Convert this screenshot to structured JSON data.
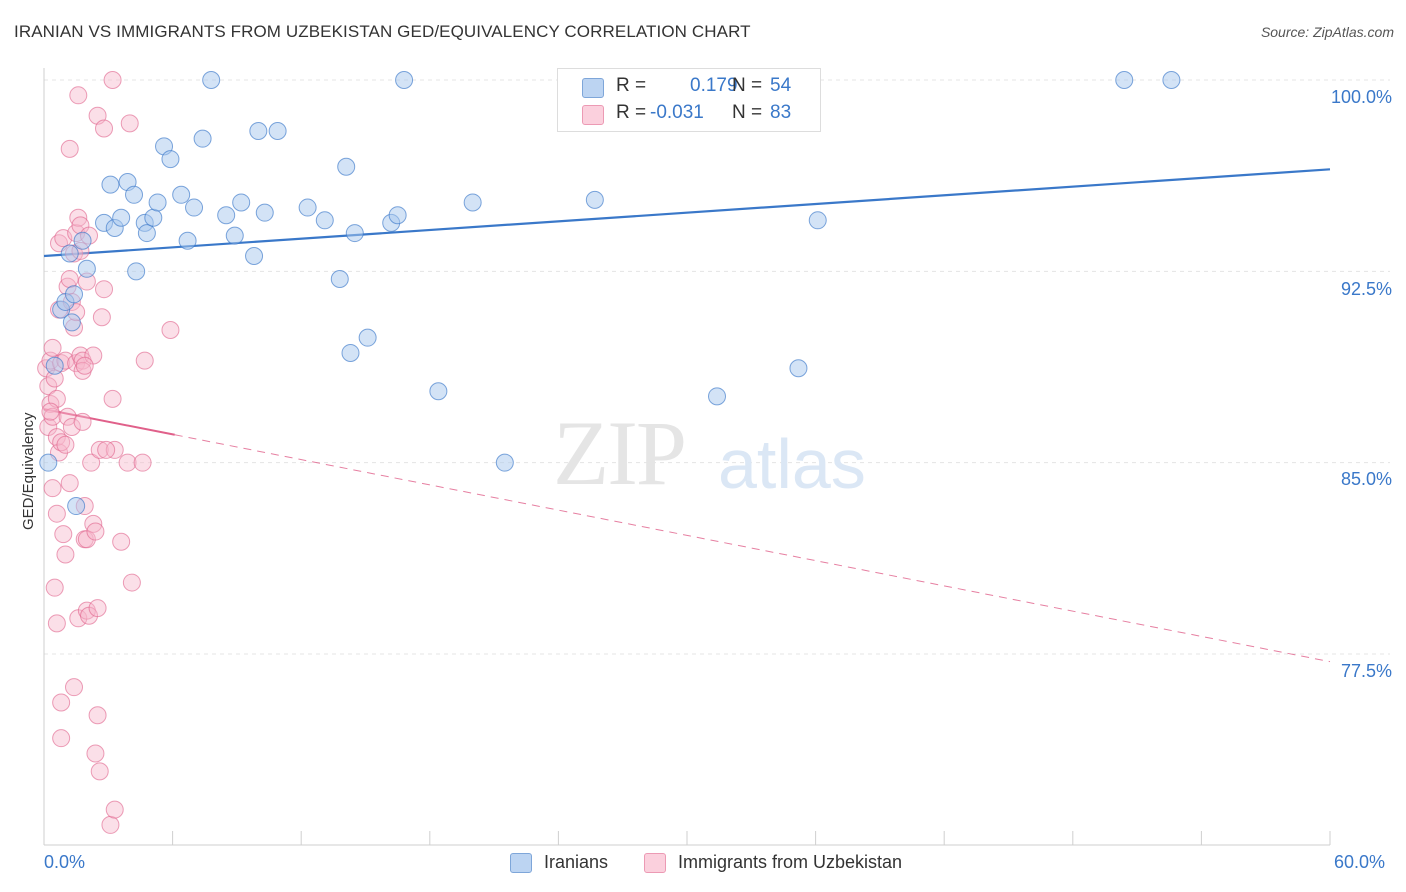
{
  "title": "IRANIAN VS IMMIGRANTS FROM UZBEKISTAN GED/EQUIVALENCY CORRELATION CHART",
  "source": "Source: ZipAtlas.com",
  "watermark_zip": "ZIP",
  "watermark_atlas": "atlas",
  "colors": {
    "blue": "#3a78c9",
    "blue_fill": "#a8c8ee",
    "pink": "#e0608a",
    "pink_fill": "#f6b8cb",
    "grid": "#e4e4e4"
  },
  "legend": {
    "rows": [
      {
        "r_label": "R =",
        "r_value": "0.179",
        "n_label": "N =",
        "n_value": "54"
      },
      {
        "r_label": "R =",
        "r_value": "-0.031",
        "n_label": "N =",
        "n_value": "83"
      }
    ]
  },
  "bottom_legend": {
    "series1": "Iranians",
    "series2": "Immigrants from Uzbekistan"
  },
  "chart_data": {
    "type": "scatter",
    "title": "IRANIAN VS IMMIGRANTS FROM UZBEKISTAN GED/EQUIVALENCY CORRELATION CHART",
    "xlabel": "",
    "ylabel": "GED/Equivalency",
    "xlim": [
      0,
      60
    ],
    "ylim": [
      71,
      100.8
    ],
    "x_tick_labels": [
      "0.0%",
      "60.0%"
    ],
    "y_ticks": [
      100,
      92.5,
      85,
      77.5
    ],
    "y_tick_labels": [
      "100.0%",
      "92.5%",
      "85.0%",
      "77.5%"
    ],
    "series": [
      {
        "name": "Iranians",
        "color": "#3a78c9",
        "trend": {
          "x0": 0,
          "y0": 93.1,
          "x1": 60,
          "y1": 96.5,
          "dashed_after": null
        },
        "points": [
          [
            0.2,
            85.0
          ],
          [
            0.5,
            88.8
          ],
          [
            0.8,
            91.0
          ],
          [
            1.0,
            91.3
          ],
          [
            1.2,
            93.2
          ],
          [
            1.3,
            90.5
          ],
          [
            1.4,
            91.6
          ],
          [
            1.5,
            83.3
          ],
          [
            1.8,
            93.7
          ],
          [
            2.0,
            92.6
          ],
          [
            2.8,
            94.4
          ],
          [
            3.1,
            95.9
          ],
          [
            3.3,
            94.2
          ],
          [
            3.6,
            94.6
          ],
          [
            3.9,
            96.0
          ],
          [
            4.2,
            95.5
          ],
          [
            4.3,
            92.5
          ],
          [
            4.7,
            94.4
          ],
          [
            4.8,
            94.0
          ],
          [
            5.1,
            94.6
          ],
          [
            5.3,
            95.2
          ],
          [
            5.6,
            97.4
          ],
          [
            5.9,
            96.9
          ],
          [
            6.4,
            95.5
          ],
          [
            6.7,
            93.7
          ],
          [
            7.0,
            95.0
          ],
          [
            7.4,
            97.7
          ],
          [
            7.8,
            100.0
          ],
          [
            8.5,
            94.7
          ],
          [
            8.9,
            93.9
          ],
          [
            9.2,
            95.2
          ],
          [
            9.8,
            93.1
          ],
          [
            10.0,
            98.0
          ],
          [
            10.3,
            94.8
          ],
          [
            10.9,
            98.0
          ],
          [
            12.3,
            95.0
          ],
          [
            13.1,
            94.5
          ],
          [
            13.8,
            92.2
          ],
          [
            14.1,
            96.6
          ],
          [
            14.3,
            89.3
          ],
          [
            14.5,
            94.0
          ],
          [
            15.1,
            89.9
          ],
          [
            16.2,
            94.4
          ],
          [
            16.5,
            94.7
          ],
          [
            16.8,
            100.0
          ],
          [
            18.4,
            87.8
          ],
          [
            20.0,
            95.2
          ],
          [
            21.5,
            85.0
          ],
          [
            25.7,
            95.3
          ],
          [
            31.4,
            87.6
          ],
          [
            35.2,
            88.7
          ],
          [
            36.1,
            94.5
          ],
          [
            50.4,
            100.0
          ],
          [
            52.6,
            100.0
          ]
        ]
      },
      {
        "name": "Immigrants from Uzbekistan",
        "color": "#e0608a",
        "trend": {
          "x0": 0,
          "y0": 87.1,
          "x1": 60,
          "y1": 77.2,
          "solid_until": 6.1
        },
        "points": [
          [
            0.1,
            88.7
          ],
          [
            0.2,
            88.0
          ],
          [
            0.2,
            86.4
          ],
          [
            0.3,
            89.0
          ],
          [
            0.3,
            87.3
          ],
          [
            0.4,
            89.5
          ],
          [
            0.4,
            86.8
          ],
          [
            0.4,
            84.0
          ],
          [
            0.5,
            88.3
          ],
          [
            0.5,
            80.1
          ],
          [
            0.6,
            87.5
          ],
          [
            0.6,
            86.0
          ],
          [
            0.6,
            78.7
          ],
          [
            0.7,
            93.6
          ],
          [
            0.7,
            91.0
          ],
          [
            0.7,
            85.4
          ],
          [
            0.8,
            88.9
          ],
          [
            0.8,
            85.8
          ],
          [
            0.8,
            74.2
          ],
          [
            0.8,
            75.6
          ],
          [
            0.9,
            82.2
          ],
          [
            0.9,
            93.8
          ],
          [
            1.0,
            89.0
          ],
          [
            1.0,
            85.7
          ],
          [
            1.0,
            81.4
          ],
          [
            1.1,
            91.9
          ],
          [
            1.1,
            86.8
          ],
          [
            1.2,
            92.2
          ],
          [
            1.2,
            84.2
          ],
          [
            1.2,
            97.3
          ],
          [
            1.3,
            91.3
          ],
          [
            1.3,
            86.4
          ],
          [
            1.4,
            93.2
          ],
          [
            1.4,
            90.3
          ],
          [
            1.4,
            76.2
          ],
          [
            1.5,
            94.0
          ],
          [
            1.5,
            90.9
          ],
          [
            1.5,
            88.9
          ],
          [
            1.6,
            99.4
          ],
          [
            1.6,
            94.6
          ],
          [
            1.6,
            78.9
          ],
          [
            1.7,
            94.3
          ],
          [
            1.7,
            93.3
          ],
          [
            1.7,
            89.2
          ],
          [
            1.8,
            89.0
          ],
          [
            1.8,
            88.6
          ],
          [
            1.8,
            86.6
          ],
          [
            1.9,
            83.3
          ],
          [
            1.9,
            82.0
          ],
          [
            2.0,
            82.0
          ],
          [
            2.0,
            79.2
          ],
          [
            2.0,
            92.1
          ],
          [
            2.1,
            93.9
          ],
          [
            2.1,
            79.0
          ],
          [
            2.2,
            85.0
          ],
          [
            2.3,
            89.2
          ],
          [
            2.3,
            82.6
          ],
          [
            2.4,
            82.3
          ],
          [
            2.4,
            73.6
          ],
          [
            2.5,
            98.6
          ],
          [
            2.5,
            75.1
          ],
          [
            2.5,
            79.3
          ],
          [
            2.6,
            72.9
          ],
          [
            2.6,
            85.5
          ],
          [
            2.7,
            90.7
          ],
          [
            2.8,
            91.8
          ],
          [
            2.8,
            98.1
          ],
          [
            3.1,
            70.8
          ],
          [
            3.2,
            100.0
          ],
          [
            3.2,
            87.5
          ],
          [
            3.3,
            85.5
          ],
          [
            3.3,
            71.4
          ],
          [
            3.6,
            81.9
          ],
          [
            3.9,
            85.0
          ],
          [
            4.0,
            98.3
          ],
          [
            4.1,
            80.3
          ],
          [
            4.6,
            85.0
          ],
          [
            4.7,
            89.0
          ],
          [
            5.9,
            90.2
          ],
          [
            0.3,
            87.0
          ],
          [
            0.6,
            83.0
          ],
          [
            1.9,
            88.8
          ],
          [
            2.9,
            85.5
          ]
        ]
      }
    ]
  }
}
